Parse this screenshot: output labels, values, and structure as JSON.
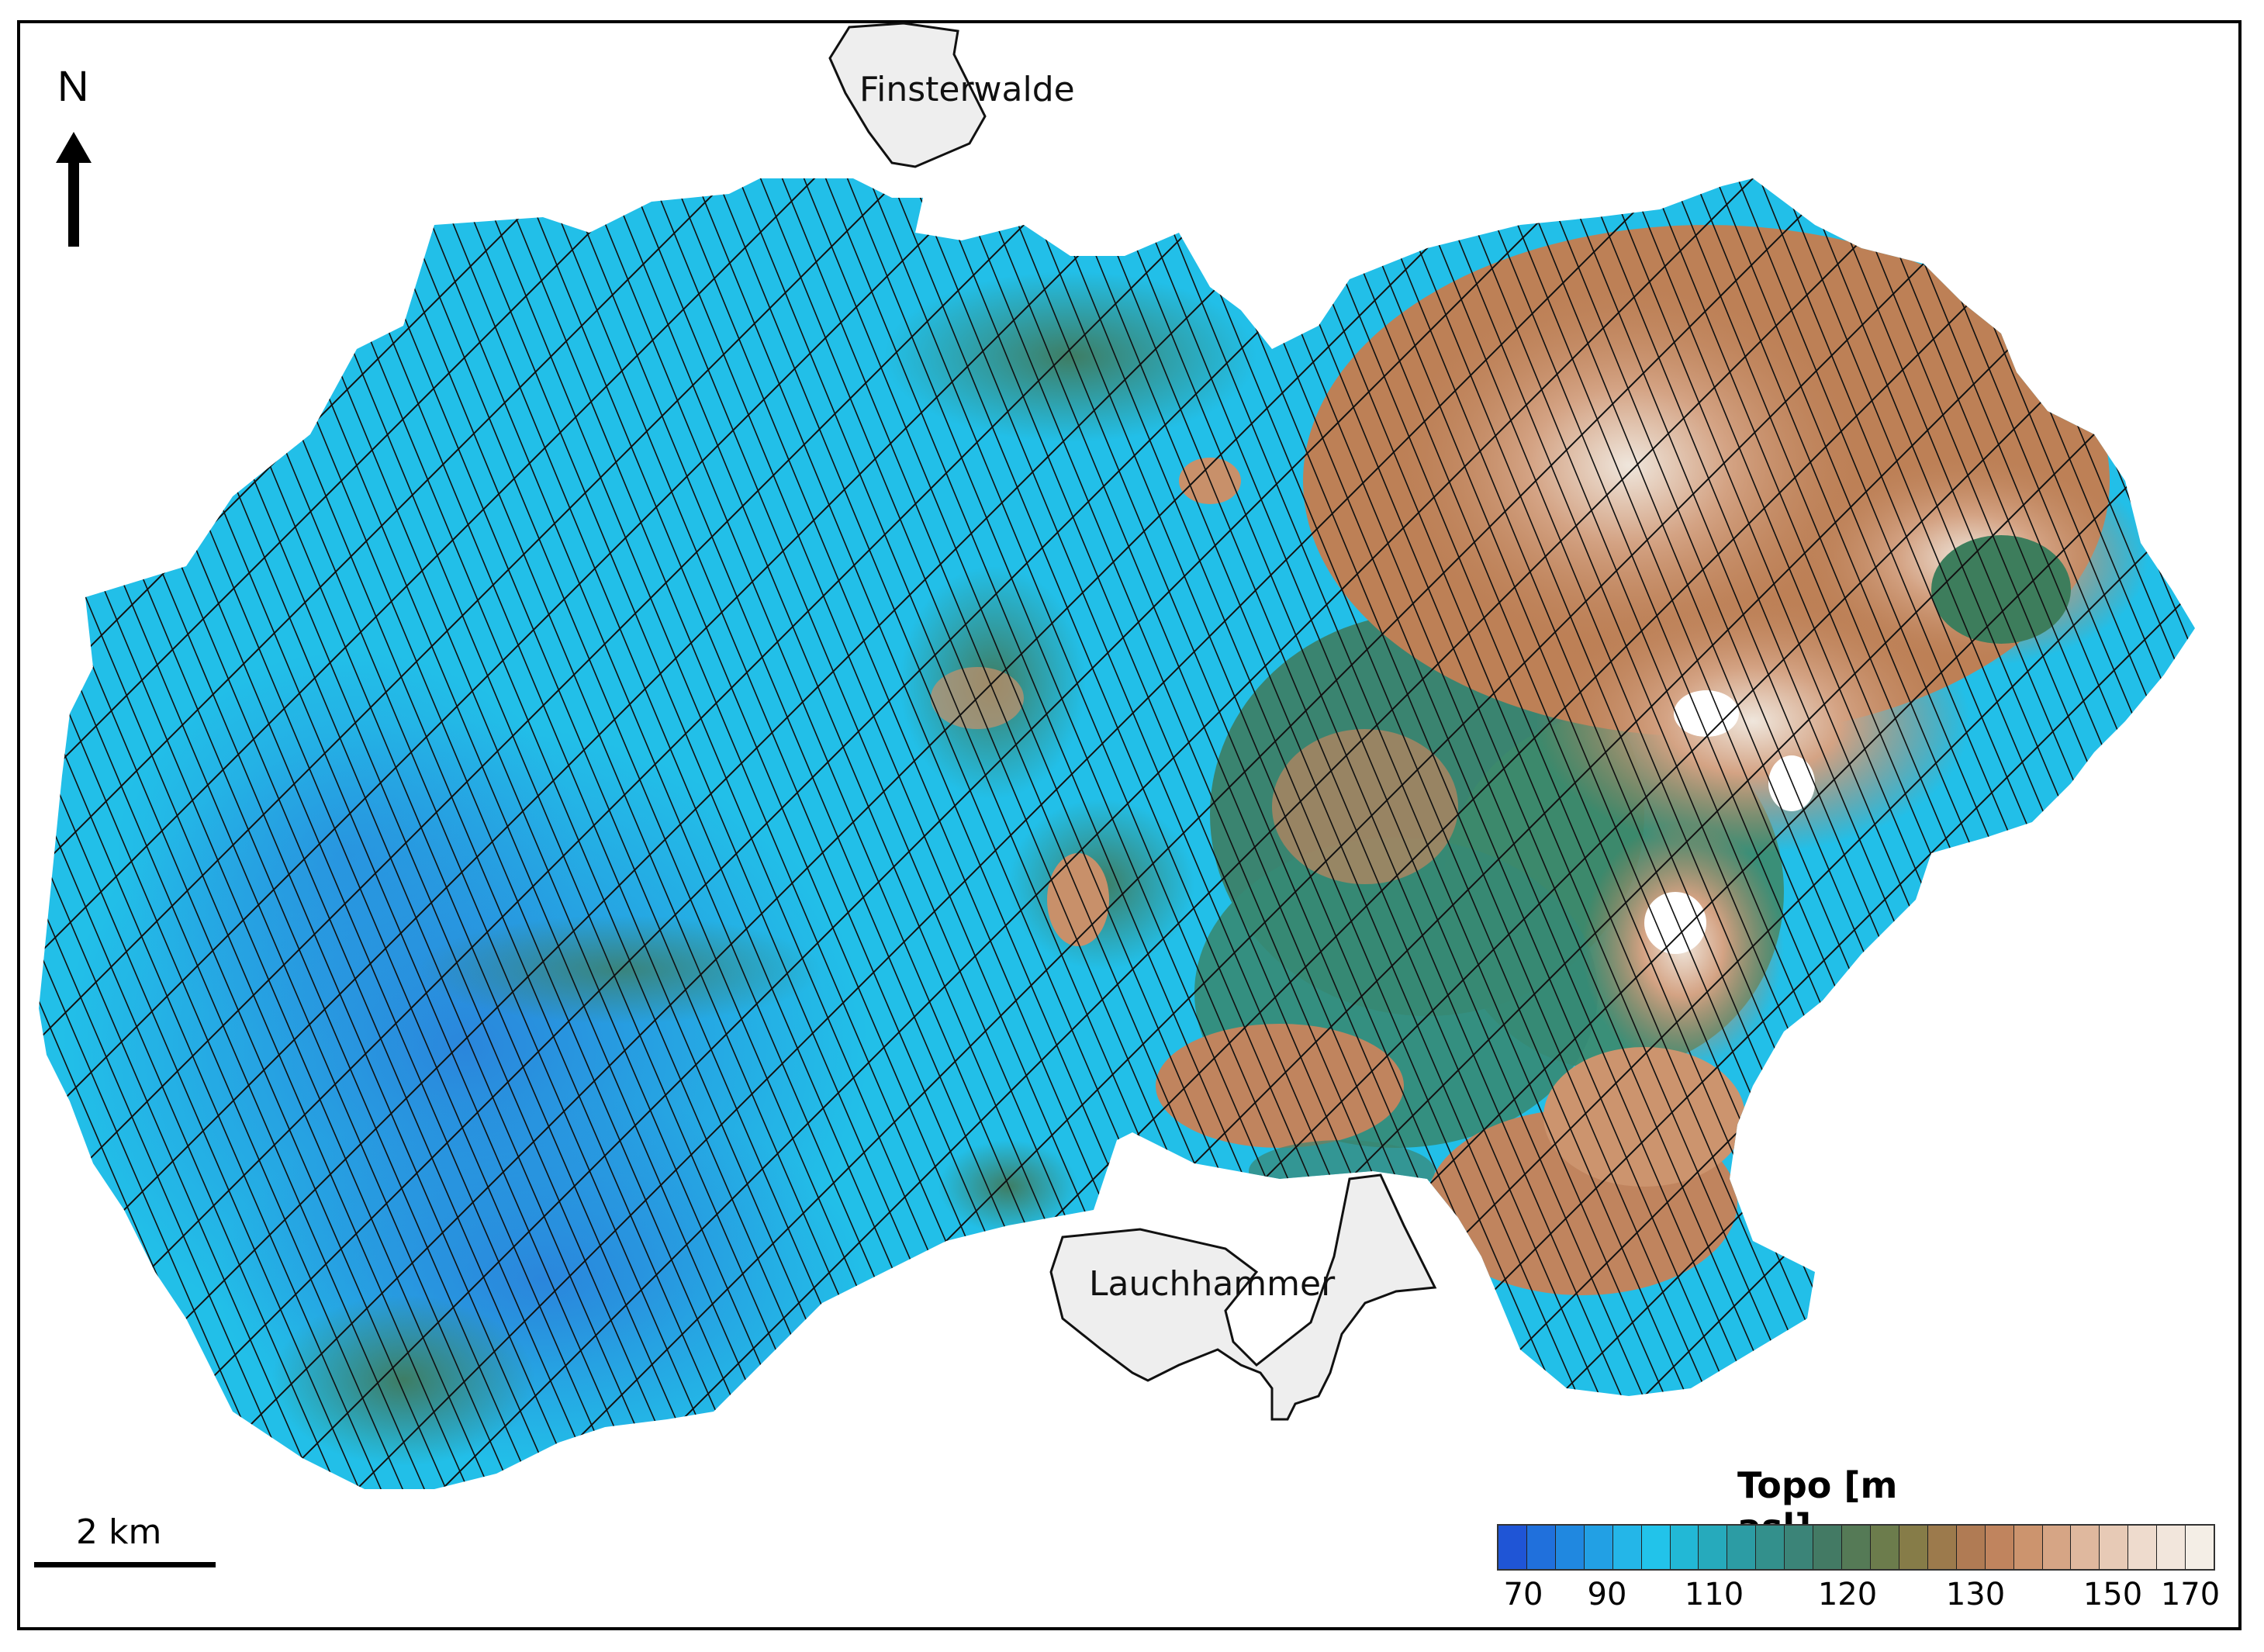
{
  "north": {
    "label": "N",
    "icon": "north-arrow-icon"
  },
  "scale": {
    "label": "2 km"
  },
  "towns": [
    {
      "name": "Finsterwalde"
    },
    {
      "name": "Lauchhammer"
    }
  ],
  "legend": {
    "title": "Topo [m asl]",
    "ticks": [
      "70",
      "90",
      "110",
      "120",
      "130",
      "150",
      "170"
    ],
    "colors": [
      "#1f55d6",
      "#2070dc",
      "#2088e0",
      "#22a0e4",
      "#24b6e8",
      "#22c3ea",
      "#22b8d6",
      "#26aabc",
      "#2c9ca4",
      "#33908c",
      "#3b8478",
      "#437a64",
      "#557a56",
      "#6c7c4c",
      "#867c48",
      "#9c7a4c",
      "#b07b54",
      "#c0845e",
      "#cc946e",
      "#d6a585",
      "#dfb89e",
      "#e7cab6",
      "#eedbcd",
      "#f2e6dc",
      "#f4eee6"
    ]
  }
}
